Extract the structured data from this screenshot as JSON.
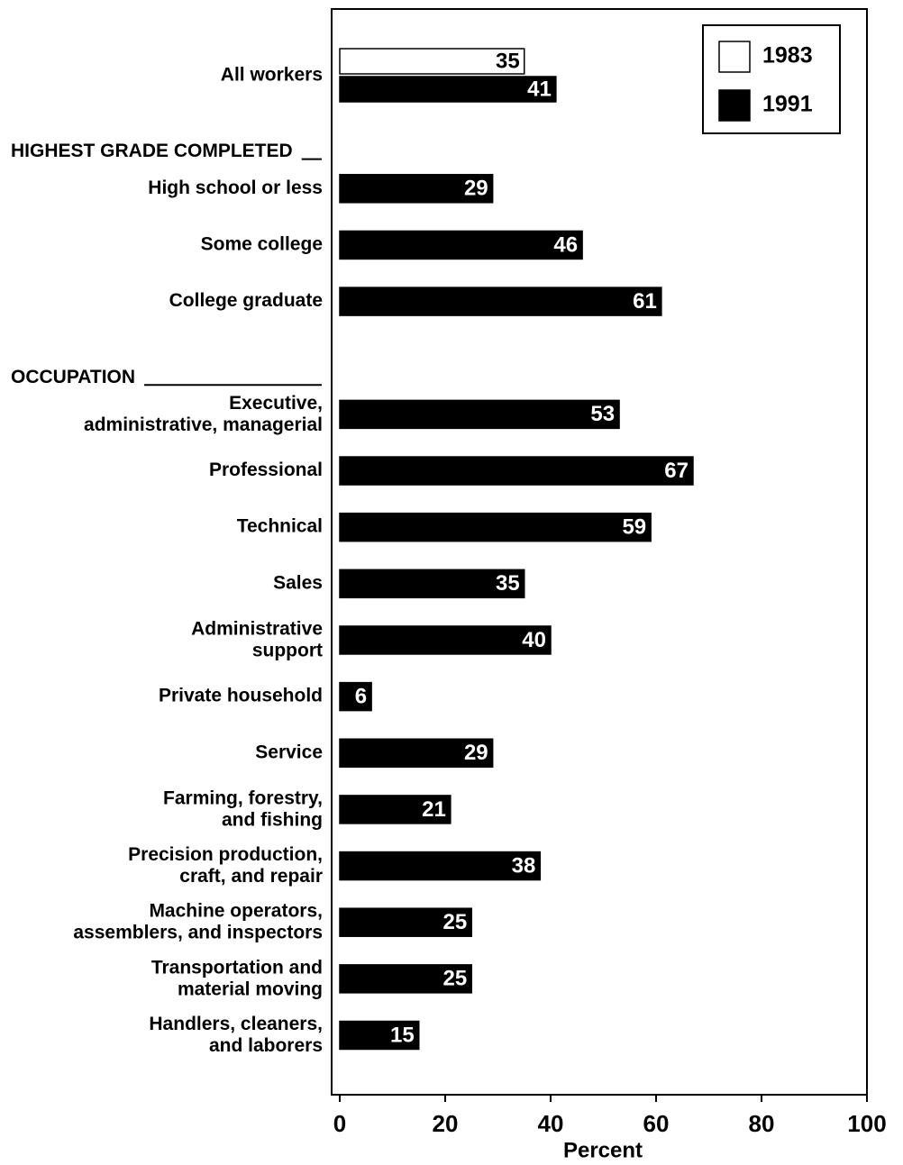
{
  "chart_data": {
    "type": "bar",
    "orientation": "horizontal",
    "categories": [
      "All workers",
      "HIGHEST GRADE COMPLETED",
      "High school or less",
      "Some college",
      "College graduate",
      "OCCUPATION",
      "Executive,\nadministrative, managerial",
      "Professional",
      "Technical",
      "Sales",
      "Administrative\nsupport",
      "Private household",
      "Service",
      "Farming, forestry,\nand fishing",
      "Precision production,\ncraft, and repair",
      "Machine operators,\nassemblers, and inspectors",
      "Transportation and\nmaterial moving",
      "Handlers, cleaners,\nand laborers"
    ],
    "series": [
      {
        "name": "1983",
        "color": "#ffffff",
        "values": [
          35,
          null,
          null,
          null,
          null,
          null,
          null,
          null,
          null,
          null,
          null,
          null,
          null,
          null,
          null,
          null,
          null,
          null
        ]
      },
      {
        "name": "1991",
        "color": "#000000",
        "values": [
          41,
          null,
          29,
          46,
          61,
          null,
          53,
          67,
          59,
          35,
          40,
          6,
          29,
          21,
          38,
          25,
          25,
          15
        ]
      }
    ],
    "xlim": [
      0,
      100
    ],
    "xticks": [
      0,
      20,
      40,
      60,
      80,
      100
    ],
    "xlabel": "Percent",
    "legend": "upper right"
  }
}
